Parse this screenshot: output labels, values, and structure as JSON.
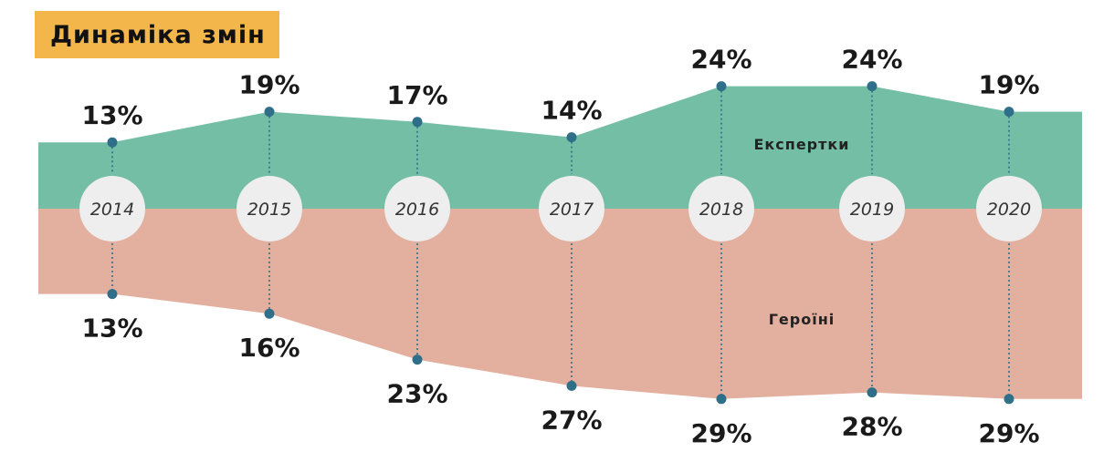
{
  "header": {
    "title": "Динаміка змін"
  },
  "colors": {
    "top_band": "#74bea5",
    "bottom_band": "#e3b09f",
    "marker": "#2f6f8a",
    "badge": "#eeeeee",
    "title_bg": "#f3b64b"
  },
  "chart_data": {
    "type": "area",
    "title": "Динаміка змін",
    "categories": [
      "2014",
      "2015",
      "2016",
      "2017",
      "2018",
      "2019",
      "2020"
    ],
    "series": [
      {
        "name": "Експертки",
        "values": [
          13,
          19,
          17,
          14,
          24,
          24,
          19
        ],
        "labels": [
          "13%",
          "19%",
          "17%",
          "14%",
          "24%",
          "24%",
          "19%"
        ],
        "direction": "up"
      },
      {
        "name": "Героїні",
        "values": [
          13,
          16,
          23,
          27,
          29,
          28,
          29
        ],
        "labels": [
          "13%",
          "16%",
          "23%",
          "27%",
          "29%",
          "28%",
          "29%"
        ],
        "direction": "down"
      }
    ],
    "unit": "%",
    "grid": false,
    "legend": "inline"
  }
}
